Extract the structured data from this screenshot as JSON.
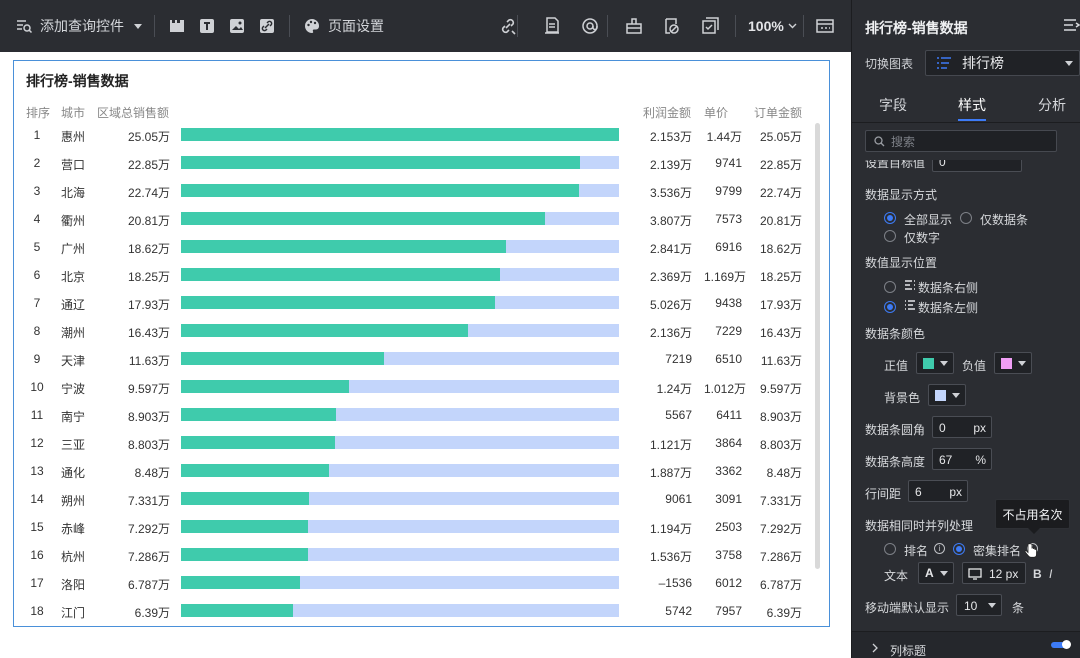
{
  "toolbar": {
    "add_query_label": "添加查询控件",
    "page_settings_label": "页面设置",
    "zoom": "100%"
  },
  "card": {
    "title": "排行榜-销售数据",
    "headers": {
      "rank": "排序",
      "city": "城市",
      "total": "区域总销售额",
      "profit": "利润金额",
      "price": "单价",
      "order": "订单金额"
    },
    "rows": [
      {
        "rank": "1",
        "city": "惠州",
        "total": "25.05万",
        "profit": "2.153万",
        "price": "1.44万",
        "order": "25.05万",
        "ratio": 1.0
      },
      {
        "rank": "2",
        "city": "营口",
        "total": "22.85万",
        "profit": "2.139万",
        "price": "9741",
        "order": "22.85万",
        "ratio": 0.912
      },
      {
        "rank": "3",
        "city": "北海",
        "total": "22.74万",
        "profit": "3.536万",
        "price": "9799",
        "order": "22.74万",
        "ratio": 0.908
      },
      {
        "rank": "4",
        "city": "衢州",
        "total": "20.81万",
        "profit": "3.807万",
        "price": "7573",
        "order": "20.81万",
        "ratio": 0.831
      },
      {
        "rank": "5",
        "city": "广州",
        "total": "18.62万",
        "profit": "2.841万",
        "price": "6916",
        "order": "18.62万",
        "ratio": 0.743
      },
      {
        "rank": "6",
        "city": "北京",
        "total": "18.25万",
        "profit": "2.369万",
        "price": "1.169万",
        "order": "18.25万",
        "ratio": 0.729
      },
      {
        "rank": "7",
        "city": "通辽",
        "total": "17.93万",
        "profit": "5.026万",
        "price": "9438",
        "order": "17.93万",
        "ratio": 0.716
      },
      {
        "rank": "8",
        "city": "潮州",
        "total": "16.43万",
        "profit": "2.136万",
        "price": "7229",
        "order": "16.43万",
        "ratio": 0.656
      },
      {
        "rank": "9",
        "city": "天津",
        "total": "11.63万",
        "profit": "7219",
        "price": "6510",
        "order": "11.63万",
        "ratio": 0.464
      },
      {
        "rank": "10",
        "city": "宁波",
        "total": "9.597万",
        "profit": "1.24万",
        "price": "1.012万",
        "order": "9.597万",
        "ratio": 0.383
      },
      {
        "rank": "11",
        "city": "南宁",
        "total": "8.903万",
        "profit": "5567",
        "price": "6411",
        "order": "8.903万",
        "ratio": 0.355
      },
      {
        "rank": "12",
        "city": "三亚",
        "total": "8.803万",
        "profit": "1.121万",
        "price": "3864",
        "order": "8.803万",
        "ratio": 0.351
      },
      {
        "rank": "13",
        "city": "通化",
        "total": "8.48万",
        "profit": "1.887万",
        "price": "3362",
        "order": "8.48万",
        "ratio": 0.339
      },
      {
        "rank": "14",
        "city": "朔州",
        "total": "7.331万",
        "profit": "9061",
        "price": "3091",
        "order": "7.331万",
        "ratio": 0.293
      },
      {
        "rank": "15",
        "city": "赤峰",
        "total": "7.292万",
        "profit": "1.194万",
        "price": "2503",
        "order": "7.292万",
        "ratio": 0.291
      },
      {
        "rank": "16",
        "city": "杭州",
        "total": "7.286万",
        "profit": "1.536万",
        "price": "3758",
        "order": "7.286万",
        "ratio": 0.291
      },
      {
        "rank": "17",
        "city": "洛阳",
        "total": "6.787万",
        "profit": "–1536",
        "price": "6012",
        "order": "6.787万",
        "ratio": 0.271
      },
      {
        "rank": "18",
        "city": "江门",
        "total": "6.39万",
        "profit": "5742",
        "price": "7957",
        "order": "6.39万",
        "ratio": 0.255
      }
    ],
    "bar_color": "#3fcbac",
    "bar_bg_color": "#c3d5fb"
  },
  "panel": {
    "title": "排行榜-销售数据",
    "switch_chart_label": "切换图表",
    "switch_chart_value": "排行榜",
    "tabs": [
      "字段",
      "样式",
      "分析"
    ],
    "active_tab": "样式",
    "search_placeholder": "搜索",
    "target_label": "设置目标值",
    "target_value": "0",
    "display_mode_label": "数据显示方式",
    "display_all": "全部显示",
    "display_bar_only": "仅数据条",
    "display_number_only": "仅数字",
    "value_position_label": "数值显示位置",
    "pos_right": "数据条右侧",
    "pos_left": "数据条左侧",
    "bar_color_label": "数据条颜色",
    "positive_label": "正值",
    "negative_label": "负值",
    "bg_label": "背景色",
    "positive_color": "#3fcbac",
    "negative_color": "#f09ef5",
    "bg_color": "#c3d5fb",
    "radius_label": "数据条圆角",
    "radius_value": "0",
    "radius_unit": "px",
    "height_label": "数据条高度",
    "height_value": "67",
    "height_unit": "%",
    "spacing_label": "行间距",
    "spacing_value": "6",
    "spacing_unit": "px",
    "tie_label": "数据相同时并列处理",
    "tie_rank": "排名",
    "tie_dense": "密集排名",
    "tooltip": "不占用名次",
    "text_label": "文本",
    "font_a": "A",
    "font_size": "12 px",
    "bold": "B",
    "italic": "I",
    "mobile_label": "移动端默认显示",
    "mobile_value": "10",
    "mobile_unit": "条",
    "column_title_label": "列标题"
  }
}
